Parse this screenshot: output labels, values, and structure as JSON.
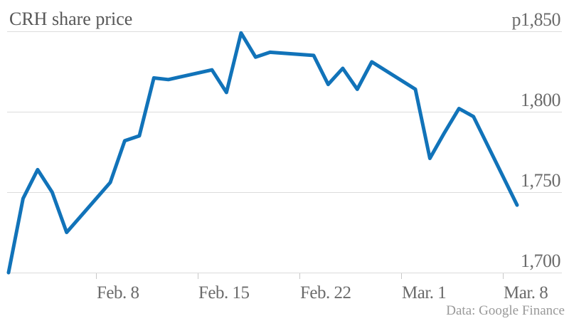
{
  "title": "CRH share price",
  "source": "Data: Google Finance",
  "colors": {
    "line": "#1173b9",
    "grid": "#dcdcdc",
    "tick": "#c8c8c8",
    "title_text": "#575757",
    "axis_text": "#6b6b6b",
    "source_text": "#999999",
    "background": "#ffffff"
  },
  "chart_data": {
    "type": "line",
    "title": "CRH share price",
    "source": "Data: Google Finance",
    "grid": true,
    "legend": "none",
    "ylim": [
      1700,
      1850
    ],
    "x_day_range": [
      0,
      35
    ],
    "y_ticks": [
      {
        "label": "p1,850",
        "value": 1850
      },
      {
        "label": "1,800",
        "value": 1800
      },
      {
        "label": "1,750",
        "value": 1750
      },
      {
        "label": "1,700",
        "value": 1700
      }
    ],
    "x_ticks": [
      {
        "label": "Feb. 8",
        "day": 6
      },
      {
        "label": "Feb. 15",
        "day": 13
      },
      {
        "label": "Feb. 22",
        "day": 20
      },
      {
        "label": "Mar. 1",
        "day": 27
      },
      {
        "label": "Mar. 8",
        "day": 34
      }
    ],
    "series": [
      {
        "name": "CRH share price (pence)",
        "points": [
          {
            "date": "Feb 2",
            "day": 0,
            "value": 1700
          },
          {
            "date": "Feb 3",
            "day": 1,
            "value": 1746
          },
          {
            "date": "Feb 4",
            "day": 2,
            "value": 1764
          },
          {
            "date": "Feb 5",
            "day": 3,
            "value": 1750
          },
          {
            "date": "Feb 6",
            "day": 4,
            "value": 1725
          },
          {
            "date": "Feb 9",
            "day": 7,
            "value": 1756
          },
          {
            "date": "Feb 10",
            "day": 8,
            "value": 1782
          },
          {
            "date": "Feb 11",
            "day": 9,
            "value": 1785
          },
          {
            "date": "Feb 12",
            "day": 10,
            "value": 1821
          },
          {
            "date": "Feb 13",
            "day": 11,
            "value": 1820
          },
          {
            "date": "Feb 16",
            "day": 14,
            "value": 1826
          },
          {
            "date": "Feb 17",
            "day": 15,
            "value": 1812
          },
          {
            "date": "Feb 18",
            "day": 16,
            "value": 1849
          },
          {
            "date": "Feb 19",
            "day": 17,
            "value": 1834
          },
          {
            "date": "Feb 20",
            "day": 18,
            "value": 1837
          },
          {
            "date": "Feb 23",
            "day": 21,
            "value": 1835
          },
          {
            "date": "Feb 24",
            "day": 22,
            "value": 1817
          },
          {
            "date": "Feb 25",
            "day": 23,
            "value": 1827
          },
          {
            "date": "Feb 26",
            "day": 24,
            "value": 1814
          },
          {
            "date": "Feb 27",
            "day": 25,
            "value": 1831
          },
          {
            "date": "Mar 2",
            "day": 28,
            "value": 1814
          },
          {
            "date": "Mar 3",
            "day": 29,
            "value": 1771
          },
          {
            "date": "Mar 4",
            "day": 30,
            "value": 1787
          },
          {
            "date": "Mar 5",
            "day": 31,
            "value": 1802
          },
          {
            "date": "Mar 6",
            "day": 32,
            "value": 1797
          },
          {
            "date": "Mar 9",
            "day": 35,
            "value": 1742
          }
        ]
      }
    ]
  }
}
